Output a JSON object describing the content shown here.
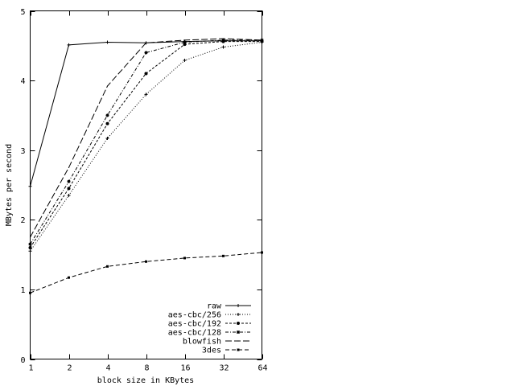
{
  "chart_data": {
    "type": "line",
    "xlabel": "block size in KBytes",
    "ylabel": "MBytes per second",
    "x_scale": "log2",
    "x": [
      1,
      2,
      4,
      8,
      16,
      32,
      64
    ],
    "x_tick_labels": [
      "1",
      "2",
      "4",
      "8",
      "16",
      "32",
      "64"
    ],
    "ylim": [
      0,
      5
    ],
    "y_ticks": [
      0,
      1,
      2,
      3,
      4,
      5
    ],
    "y_tick_labels": [
      "0",
      "1",
      "2",
      "3",
      "4",
      "5"
    ],
    "grid": false,
    "legend_position": "bottom-right",
    "series": [
      {
        "name": "raw",
        "dash": "solid",
        "marker": "plus",
        "values": [
          2.48,
          4.51,
          4.55,
          4.54,
          4.56,
          4.57,
          4.57
        ]
      },
      {
        "name": "aes-cbc/256",
        "dash": "dotted",
        "marker": "plus",
        "values": [
          1.55,
          2.35,
          3.17,
          3.8,
          4.29,
          4.48,
          4.55
        ]
      },
      {
        "name": "aes-cbc/192",
        "dash": "short-dash",
        "marker": "dot",
        "values": [
          1.6,
          2.45,
          3.38,
          4.1,
          4.52,
          4.56,
          4.56
        ]
      },
      {
        "name": "aes-cbc/128",
        "dash": "dash-dot",
        "marker": "star",
        "values": [
          1.65,
          2.55,
          3.5,
          4.4,
          4.55,
          4.58,
          4.58
        ]
      },
      {
        "name": "blowfish",
        "dash": "long-dash",
        "marker": "none",
        "values": [
          1.75,
          2.75,
          3.92,
          4.54,
          4.58,
          4.6,
          4.58
        ]
      },
      {
        "name": "3des",
        "dash": "dashed",
        "marker": "square",
        "values": [
          0.95,
          1.17,
          1.33,
          1.4,
          1.45,
          1.48,
          1.53
        ]
      }
    ]
  }
}
